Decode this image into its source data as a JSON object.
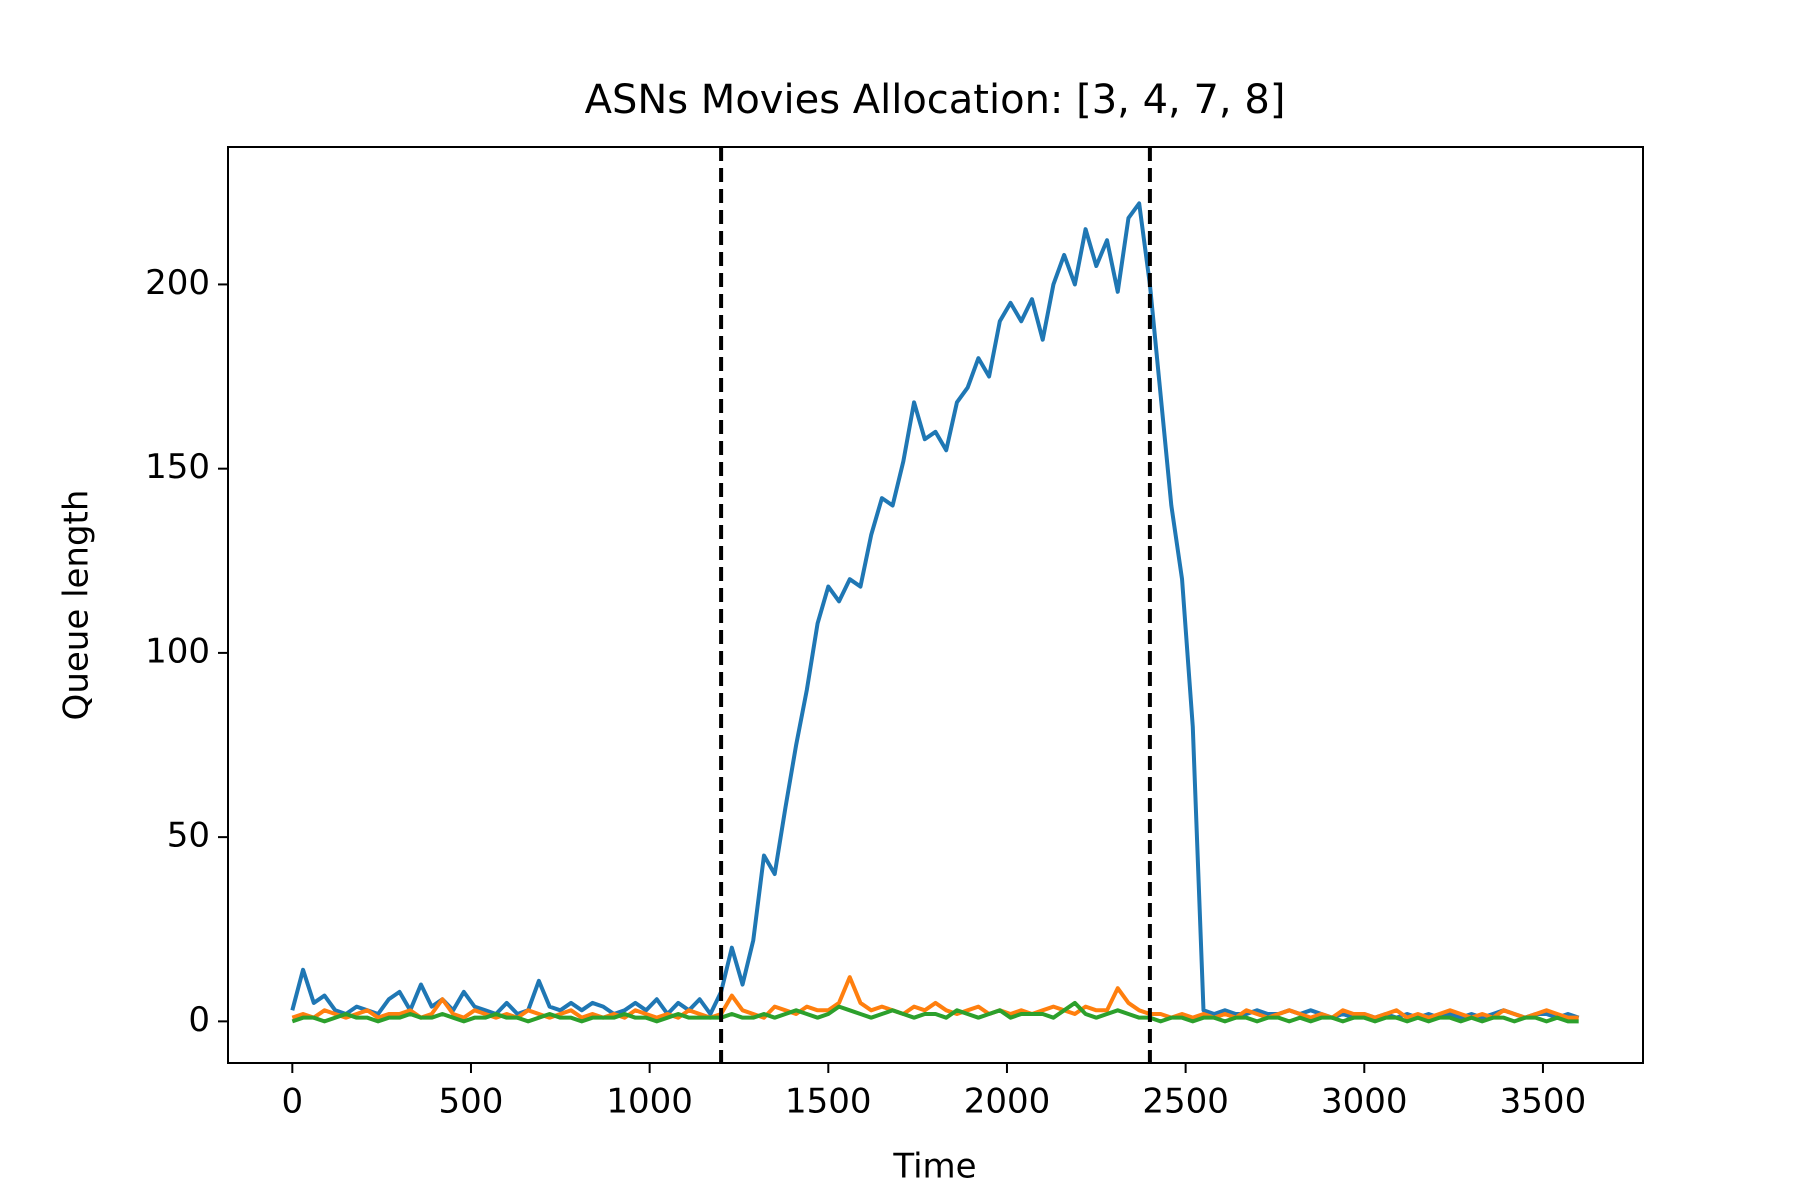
{
  "chart_data": {
    "type": "line",
    "title": "ASNs Movies Allocation: [3, 4, 7, 8]",
    "x_label": "Time",
    "y_label": "Queue length",
    "x": [
      0,
      30,
      60,
      90,
      120,
      150,
      180,
      210,
      240,
      270,
      300,
      330,
      360,
      390,
      420,
      450,
      480,
      510,
      540,
      570,
      600,
      630,
      660,
      690,
      720,
      750,
      780,
      810,
      840,
      870,
      900,
      930,
      960,
      990,
      1020,
      1050,
      1080,
      1110,
      1140,
      1170,
      1200,
      1230,
      1260,
      1290,
      1320,
      1350,
      1380,
      1410,
      1440,
      1470,
      1500,
      1530,
      1560,
      1590,
      1620,
      1650,
      1680,
      1710,
      1740,
      1770,
      1800,
      1830,
      1860,
      1890,
      1920,
      1950,
      1980,
      2010,
      2040,
      2070,
      2100,
      2130,
      2160,
      2190,
      2220,
      2250,
      2280,
      2310,
      2340,
      2370,
      2400,
      2430,
      2460,
      2490,
      2520,
      2550,
      2580,
      2610,
      2640,
      2670,
      2700,
      2730,
      2760,
      2790,
      2820,
      2850,
      2880,
      2910,
      2940,
      2970,
      3000,
      3030,
      3060,
      3090,
      3120,
      3150,
      3180,
      3210,
      3240,
      3270,
      3300,
      3330,
      3360,
      3390,
      3420,
      3450,
      3480,
      3510,
      3540,
      3570,
      3600
    ],
    "series": [
      {
        "color": "#1f77b4",
        "values": [
          3,
          14,
          5,
          7,
          3,
          2,
          4,
          3,
          2,
          6,
          8,
          3,
          10,
          4,
          6,
          3,
          8,
          4,
          3,
          2,
          5,
          2,
          3,
          11,
          4,
          3,
          5,
          3,
          5,
          4,
          2,
          3,
          5,
          3,
          6,
          2,
          5,
          3,
          6,
          2,
          8,
          20,
          10,
          22,
          45,
          40,
          58,
          75,
          90,
          108,
          118,
          114,
          120,
          118,
          132,
          142,
          140,
          152,
          168,
          158,
          160,
          155,
          168,
          172,
          180,
          175,
          190,
          195,
          190,
          196,
          185,
          200,
          208,
          200,
          215,
          205,
          212,
          198,
          218,
          222,
          200,
          170,
          140,
          120,
          80,
          3,
          2,
          3,
          2,
          2,
          3,
          2,
          2,
          3,
          2,
          3,
          2,
          1,
          2,
          1,
          2,
          1,
          2,
          1,
          2,
          1,
          2,
          1,
          2,
          1,
          2,
          1,
          2,
          3,
          2,
          1,
          2,
          2,
          1,
          2,
          1
        ]
      },
      {
        "color": "#ff7f0e",
        "values": [
          1,
          2,
          1,
          3,
          2,
          1,
          2,
          3,
          1,
          2,
          2,
          3,
          1,
          2,
          6,
          2,
          1,
          3,
          2,
          1,
          2,
          1,
          3,
          2,
          1,
          2,
          3,
          1,
          2,
          1,
          2,
          1,
          3,
          2,
          1,
          2,
          1,
          3,
          2,
          1,
          2,
          7,
          3,
          2,
          1,
          4,
          3,
          2,
          4,
          3,
          3,
          5,
          12,
          5,
          3,
          4,
          3,
          2,
          4,
          3,
          5,
          3,
          2,
          3,
          4,
          2,
          3,
          2,
          3,
          2,
          3,
          4,
          3,
          2,
          4,
          3,
          3,
          9,
          5,
          3,
          2,
          2,
          1,
          2,
          1,
          2,
          1,
          2,
          1,
          3,
          2,
          1,
          2,
          3,
          2,
          1,
          2,
          1,
          3,
          2,
          2,
          1,
          2,
          3,
          1,
          2,
          1,
          2,
          3,
          2,
          1,
          2,
          1,
          3,
          2,
          1,
          2,
          3,
          2,
          1,
          1
        ]
      },
      {
        "color": "#2ca02c",
        "values": [
          0,
          1,
          1,
          0,
          1,
          2,
          1,
          1,
          0,
          1,
          1,
          2,
          1,
          1,
          2,
          1,
          0,
          1,
          1,
          2,
          1,
          1,
          0,
          1,
          2,
          1,
          1,
          0,
          1,
          1,
          1,
          2,
          1,
          1,
          0,
          1,
          2,
          1,
          1,
          1,
          1,
          2,
          1,
          1,
          2,
          1,
          2,
          3,
          2,
          1,
          2,
          4,
          3,
          2,
          1,
          2,
          3,
          2,
          1,
          2,
          2,
          1,
          3,
          2,
          1,
          2,
          3,
          1,
          2,
          2,
          2,
          1,
          3,
          5,
          2,
          1,
          2,
          3,
          2,
          1,
          1,
          0,
          1,
          1,
          0,
          1,
          1,
          0,
          1,
          1,
          0,
          1,
          1,
          0,
          1,
          0,
          1,
          1,
          0,
          1,
          1,
          0,
          1,
          1,
          0,
          1,
          0,
          1,
          1,
          0,
          1,
          0,
          1,
          1,
          0,
          1,
          1,
          0,
          1,
          0,
          0
        ]
      }
    ],
    "vlines": [
      1200,
      2400
    ],
    "vline_color": "#000000",
    "xlim": [
      -180,
      3780
    ],
    "ylim": [
      -11.3,
      237.3
    ],
    "xticks": [
      0,
      500,
      1000,
      1500,
      2000,
      2500,
      3000,
      3500
    ],
    "yticks": [
      0,
      50,
      100,
      150,
      200
    ]
  }
}
